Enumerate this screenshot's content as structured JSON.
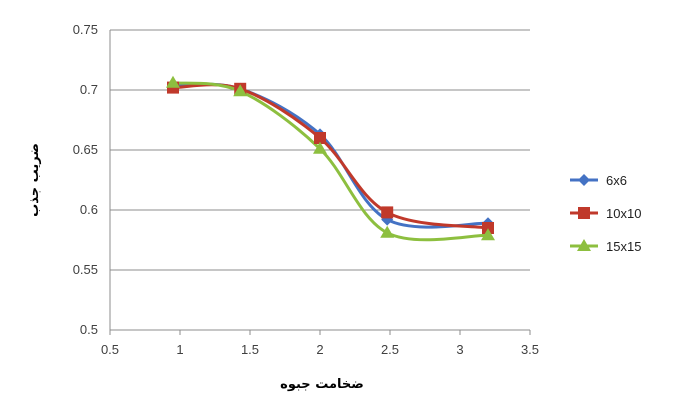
{
  "chart_data": {
    "type": "line",
    "xlabel": "ضخامت جبوه",
    "ylabel": "ضریب جذب",
    "xlim": [
      0.5,
      3.5
    ],
    "ylim": [
      0.5,
      0.75
    ],
    "x_ticks": [
      "0.5",
      "1",
      "1.5",
      "2",
      "2.5",
      "3",
      "3.5"
    ],
    "y_ticks": [
      "0.5",
      "0.55",
      "0.6",
      "0.65",
      "0.7",
      "0.75"
    ],
    "grid": "horizontal",
    "legend_position": "right",
    "series": [
      {
        "name": "6x6",
        "color": "#4472C4",
        "marker": "diamond",
        "x": [
          0.95,
          1.43,
          2.0,
          2.48,
          3.2
        ],
        "y": [
          0.704,
          0.701,
          0.663,
          0.592,
          0.589
        ]
      },
      {
        "name": "10x10",
        "color": "#C0392B",
        "marker": "square",
        "x": [
          0.95,
          1.43,
          2.0,
          2.48,
          3.2
        ],
        "y": [
          0.702,
          0.701,
          0.66,
          0.598,
          0.585
        ]
      },
      {
        "name": "15x15",
        "color": "#8DBF3F",
        "marker": "triangle",
        "x": [
          0.95,
          1.43,
          2.0,
          2.48,
          3.2
        ],
        "y": [
          0.706,
          0.699,
          0.651,
          0.581,
          0.579
        ]
      }
    ]
  }
}
